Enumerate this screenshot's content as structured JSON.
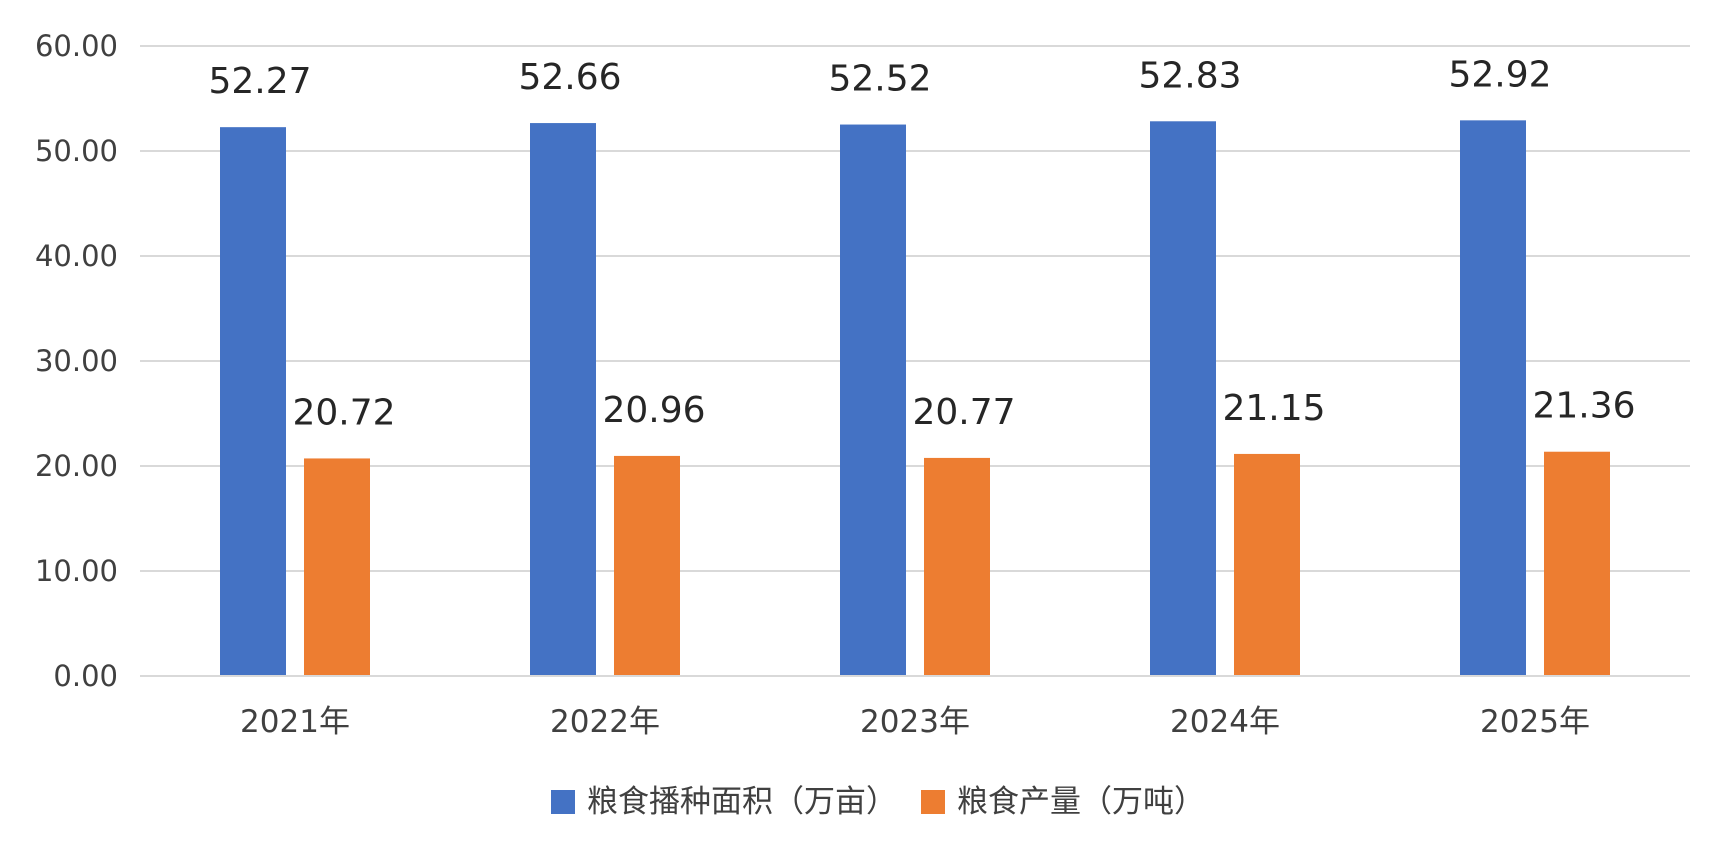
{
  "chart_data": {
    "type": "bar",
    "categories": [
      "2021年",
      "2022年",
      "2023年",
      "2024年",
      "2025年"
    ],
    "series": [
      {
        "name": "粮食播种面积（万亩）",
        "values": [
          52.27,
          52.66,
          52.52,
          52.83,
          52.92
        ],
        "labels": [
          "52.27",
          "52.66",
          "52.52",
          "52.83",
          "52.92"
        ],
        "color": "#4472C4"
      },
      {
        "name": "粮食产量（万吨）",
        "values": [
          20.72,
          20.96,
          20.77,
          21.15,
          21.36
        ],
        "labels": [
          "20.72",
          "20.96",
          "20.77",
          "21.15",
          "21.36"
        ],
        "color": "#ED7D31"
      }
    ],
    "ylim": [
      0,
      60
    ],
    "yticks": [
      0,
      10,
      20,
      30,
      40,
      50,
      60
    ],
    "ytick_labels": [
      "0.00",
      "10.00",
      "20.00",
      "30.00",
      "40.00",
      "50.00",
      "60.00"
    ],
    "grid": true,
    "gridline_color": "#D9D9D9",
    "legend_position": "bottom",
    "title": "",
    "xlabel": "",
    "ylabel": ""
  }
}
